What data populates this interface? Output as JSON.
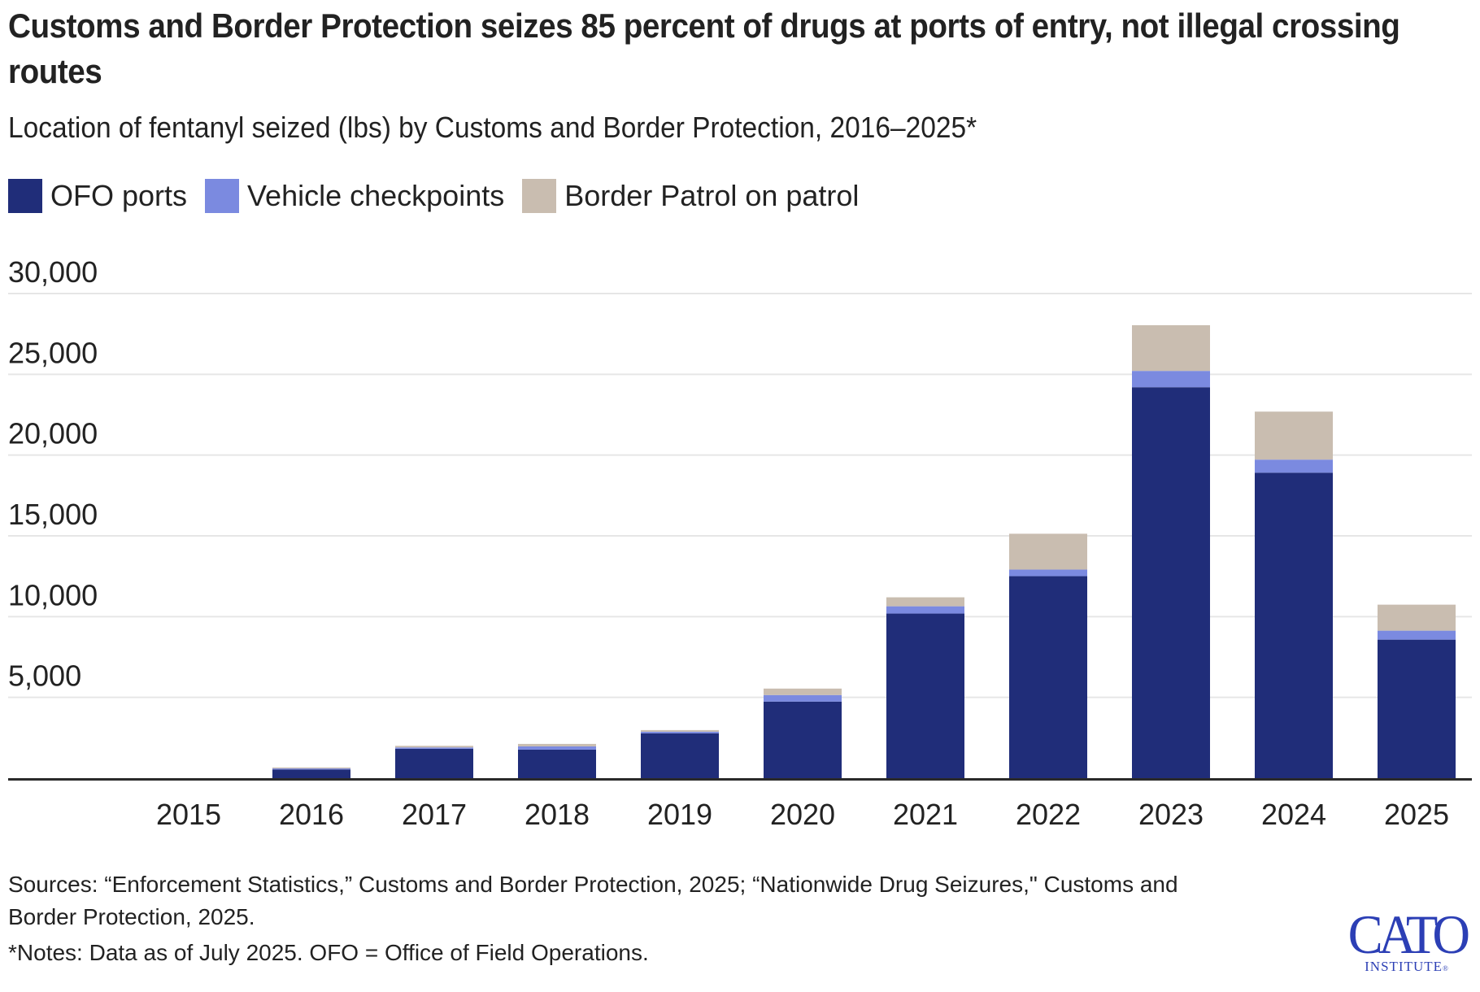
{
  "header": {
    "title": "Customs and Border Protection seizes 85 percent of drugs at ports of entry, not illegal crossing routes",
    "subtitle": "Location of fentanyl seized (lbs) by Customs and Border Protection, 2016–2025*"
  },
  "legend": [
    {
      "label": "OFO ports",
      "color": "#202d79"
    },
    {
      "label": "Vehicle checkpoints",
      "color": "#7b8ae0"
    },
    {
      "label": "Border Patrol on patrol",
      "color": "#c9bdb0"
    }
  ],
  "footer": {
    "sources": "Sources: “Enforcement Statistics,” Customs and Border Protection, 2025; “Nationwide Drug Seizures,\" Customs and Border Protection, 2025.",
    "notes": "*Notes: Data as of July 2025. OFO = Office of Field Operations."
  },
  "logo": {
    "name": "CATO",
    "sub": "INSTITUTE",
    "mark": "®",
    "color": "#2c3fb5"
  },
  "chart_data": {
    "type": "bar",
    "stacked": true,
    "title": "Customs and Border Protection seizes 85 percent of drugs at ports of entry, not illegal crossing routes",
    "subtitle": "Location of fentanyl seized (lbs) by Customs and Border Protection, 2016–2025*",
    "xlabel": "",
    "ylabel": "",
    "categories": [
      "2015",
      "2016",
      "2017",
      "2018",
      "2019",
      "2020",
      "2021",
      "2022",
      "2023",
      "2024",
      "2025"
    ],
    "series": [
      {
        "name": "OFO ports",
        "color": "#202d79",
        "values": [
          0,
          540,
          1820,
          1765,
          2775,
          4740,
          10190,
          12505,
          24200,
          18910,
          8575
        ]
      },
      {
        "name": "Vehicle checkpoints",
        "color": "#7b8ae0",
        "values": [
          0,
          60,
          80,
          200,
          100,
          405,
          450,
          405,
          1010,
          810,
          555
        ]
      },
      {
        "name": "Border Patrol on patrol",
        "color": "#c9bdb0",
        "values": [
          0,
          60,
          100,
          155,
          100,
          400,
          555,
          2220,
          2830,
          2970,
          1610
        ]
      }
    ],
    "ylim": [
      0,
      30000
    ],
    "yticks": [
      5000,
      10000,
      15000,
      20000,
      25000,
      30000
    ],
    "ytick_labels": [
      "5,000",
      "10,000",
      "15,000",
      "20,000",
      "25,000",
      "30,000"
    ],
    "grid": true,
    "legend_position": "top-left",
    "gridline_color": "#e6e6e6",
    "axis_color": "#2a2a2a"
  }
}
